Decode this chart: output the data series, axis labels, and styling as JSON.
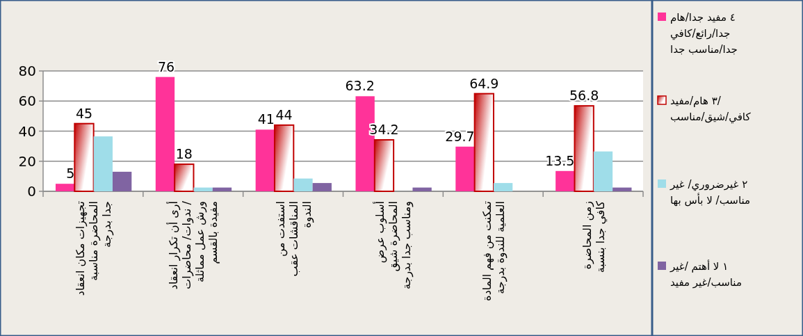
{
  "chart_data": {
    "type": "bar",
    "categories": [
      "تجهيزات مكان انعقاد\nالمحاضرة مناسبة\nجدا بدرجة",
      "أرى أن تكرار انعقاد\nندوات/ محاضرات /\nورش عمل مماثلة\nمفيدة بالقسم",
      "استفدت من\nالمناقشات عقب\nالندوة",
      "أسلوب عرض\nالمحاضرة شيق\nومناسب جدا بدرجة",
      "تمكنت من فهم المادة\nالعلمية للندوة بدرجة",
      "زمن المحاضرة\nكافي جدا بنسبة"
    ],
    "series": [
      {
        "name": "٤  مفيد جدا/هام\nجدا/رائع/كافي\nجدا/مناسب جدا",
        "color": "#ff3399",
        "values": [
          5,
          76,
          41,
          63.2,
          29.7,
          13.5
        ],
        "value_labels": [
          "5",
          "76",
          "41",
          "63.2",
          "29.7",
          "13.5"
        ]
      },
      {
        "name": "٣  هام/مفيد/\nكافي/شيق/مناسب",
        "color": "#c00000",
        "values": [
          45,
          18,
          44,
          34.2,
          64.9,
          56.8
        ],
        "value_labels": [
          "45",
          "18",
          "44",
          "34.2",
          "64.9",
          "56.8"
        ]
      },
      {
        "name": "٢  غيرضروري/ غير\nمناسب/ لا بأس بها",
        "color": "#9fdde9",
        "values": [
          36.5,
          2.5,
          8.5,
          null,
          5.5,
          26.5
        ]
      },
      {
        "name": "١ لا أهتم /غير\nمناسب/غير مفيد",
        "color": "#8064a2",
        "values": [
          13,
          2.5,
          5.5,
          2.5,
          null,
          2.5
        ]
      }
    ],
    "ylim": [
      0,
      80
    ],
    "yticks": [
      0,
      20,
      40,
      60,
      80
    ],
    "grid": "y",
    "legend": "right"
  }
}
